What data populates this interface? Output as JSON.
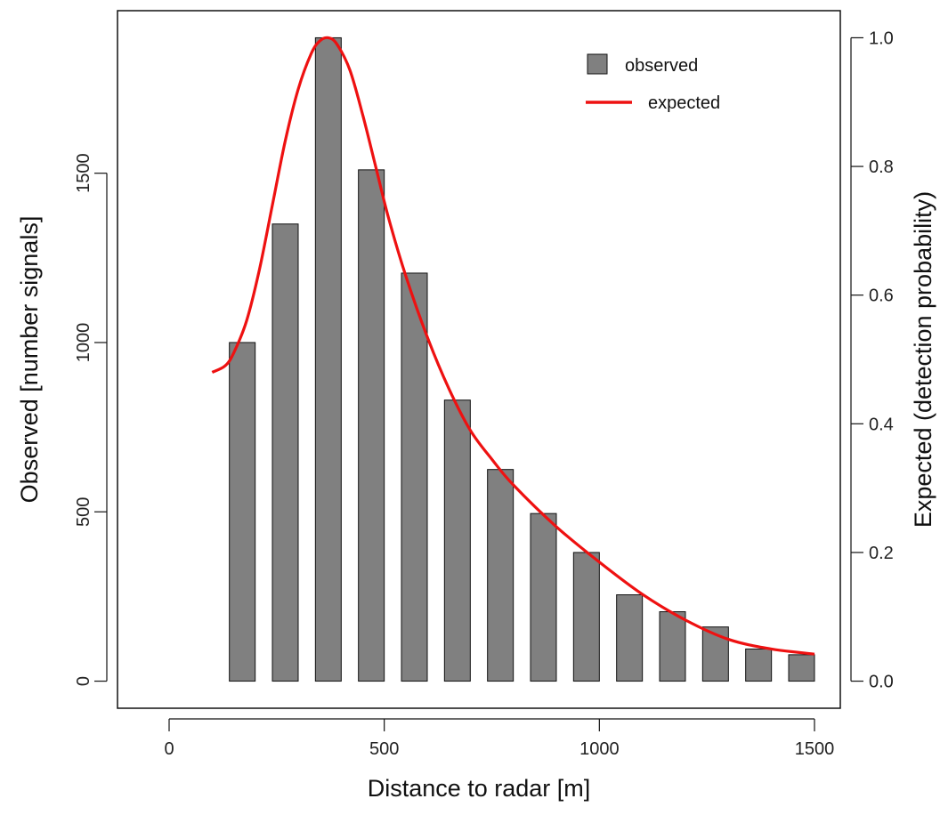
{
  "chart_data": {
    "type": "bar",
    "xlabel": "Distance to radar [m]",
    "ylabel_left": "Observed [number signals]",
    "ylabel_right": "Expected (detection probability)",
    "xlim": [
      -120,
      1560
    ],
    "xticks": [
      0,
      500,
      1000,
      1500
    ],
    "ylim_left": [
      -80,
      1980
    ],
    "yticks_left": [
      0,
      500,
      1000,
      1500
    ],
    "ylim_right": [
      0,
      1
    ],
    "yticks_right": [
      "0.0",
      "0.2",
      "0.4",
      "0.6",
      "0.8",
      "1.0"
    ],
    "bar_width": 60,
    "grid": false,
    "legend_position": "top-right",
    "series": [
      {
        "name": "observed",
        "kind": "bar",
        "color": "#808080",
        "x": [
          170,
          270,
          370,
          470,
          570,
          670,
          770,
          870,
          970,
          1070,
          1170,
          1270,
          1370,
          1470
        ],
        "values": [
          1000,
          1350,
          1900,
          1510,
          1205,
          830,
          625,
          495,
          380,
          255,
          205,
          160,
          95,
          78
        ]
      },
      {
        "name": "expected",
        "kind": "line",
        "axis": "right",
        "color": "#ee1111",
        "x": [
          100,
          130,
          150,
          180,
          210,
          240,
          270,
          300,
          330,
          350,
          370,
          390,
          420,
          450,
          480,
          510,
          550,
          600,
          650,
          700,
          750,
          800,
          900,
          1000,
          1100,
          1200,
          1300,
          1400,
          1500
        ],
        "values": [
          0.48,
          0.49,
          0.51,
          0.56,
          0.64,
          0.74,
          0.84,
          0.92,
          0.975,
          0.995,
          1.0,
          0.99,
          0.95,
          0.88,
          0.8,
          0.72,
          0.63,
          0.535,
          0.455,
          0.39,
          0.345,
          0.305,
          0.24,
          0.185,
          0.135,
          0.095,
          0.065,
          0.05,
          0.042
        ]
      }
    ]
  }
}
